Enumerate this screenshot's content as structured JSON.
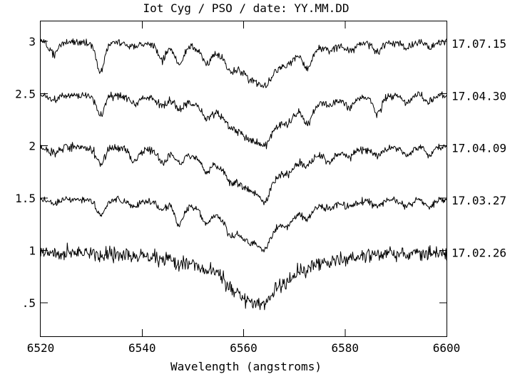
{
  "page": {
    "background_color": "#ffffff",
    "foreground_color": "#000000"
  },
  "chart_data": {
    "type": "line",
    "title": "Iot Cyg / PSO / date: YY.MM.DD",
    "xlabel": "Wavelength (angstroms)",
    "ylabel": "",
    "xlim": [
      6520,
      6600
    ],
    "ylim": [
      0.18,
      3.19
    ],
    "grid": false,
    "line_color": "#000000",
    "axis_color": "#000000",
    "legend_position": "right margin, one date label per spectrum",
    "spectral_feature": "broad H-alpha absorption near 6562-6563 angstroms in every spectrum",
    "x_ticks": [
      {
        "value": 6520,
        "label": "6520"
      },
      {
        "value": 6540,
        "label": "6540"
      },
      {
        "value": 6560,
        "label": "6560"
      },
      {
        "value": 6580,
        "label": "6580"
      },
      {
        "value": 6600,
        "label": "6600"
      }
    ],
    "y_ticks": [
      {
        "value": 0.5,
        "label": ".5"
      },
      {
        "value": 1.0,
        "label": "1"
      },
      {
        "value": 1.5,
        "label": "1.5"
      },
      {
        "value": 2.0,
        "label": "2"
      },
      {
        "value": 2.5,
        "label": "2.5"
      },
      {
        "value": 3.0,
        "label": "3"
      }
    ],
    "series": [
      {
        "date_label": "17.07.15",
        "continuum": 3.0,
        "halpha_center": 6563.0,
        "halpha_depth": 0.4,
        "halpha_min": 2.6,
        "halpha_gamma": 5.5,
        "noise_std": 0.018,
        "narrow_line_strength": 1.0
      },
      {
        "date_label": "17.04.30",
        "continuum": 2.5,
        "halpha_center": 6562.5,
        "halpha_depth": 0.46,
        "halpha_min": 2.04,
        "halpha_gamma": 6.5,
        "noise_std": 0.018,
        "narrow_line_strength": 0.8
      },
      {
        "date_label": "17.04.09",
        "continuum": 2.0,
        "halpha_center": 6562.2,
        "halpha_depth": 0.44,
        "halpha_min": 1.56,
        "halpha_gamma": 6.5,
        "noise_std": 0.018,
        "narrow_line_strength": 1.0
      },
      {
        "date_label": "17.03.27",
        "continuum": 1.5,
        "halpha_center": 6562.2,
        "halpha_depth": 0.44,
        "halpha_min": 1.06,
        "halpha_gamma": 6.0,
        "noise_std": 0.016,
        "narrow_line_strength": 0.8
      },
      {
        "date_label": "17.02.26",
        "continuum": 1.0,
        "halpha_center": 6562.4,
        "halpha_depth": 0.5,
        "halpha_min": 0.5,
        "halpha_gamma": 7.0,
        "noise_std": 0.035,
        "narrow_line_strength": 0.4
      }
    ],
    "narrow_absorption_lines": [
      {
        "wavelength": 6522.6,
        "depth": 0.1
      },
      {
        "wavelength": 6531.8,
        "depth": 0.2
      },
      {
        "wavelength": 6538.4,
        "depth": 0.08
      },
      {
        "wavelength": 6543.9,
        "depth": 0.12
      },
      {
        "wavelength": 6547.3,
        "depth": 0.22
      },
      {
        "wavelength": 6552.6,
        "depth": 0.1
      },
      {
        "wavelength": 6557.4,
        "depth": 0.08
      },
      {
        "wavelength": 6564.2,
        "depth": 0.09
      },
      {
        "wavelength": 6568.8,
        "depth": 0.07
      },
      {
        "wavelength": 6572.6,
        "depth": 0.12
      },
      {
        "wavelength": 6577.0,
        "depth": 0.06
      },
      {
        "wavelength": 6580.9,
        "depth": 0.08
      },
      {
        "wavelength": 6586.4,
        "depth": 0.13
      },
      {
        "wavelength": 6592.2,
        "depth": 0.07
      },
      {
        "wavelength": 6596.6,
        "depth": 0.09
      }
    ]
  }
}
